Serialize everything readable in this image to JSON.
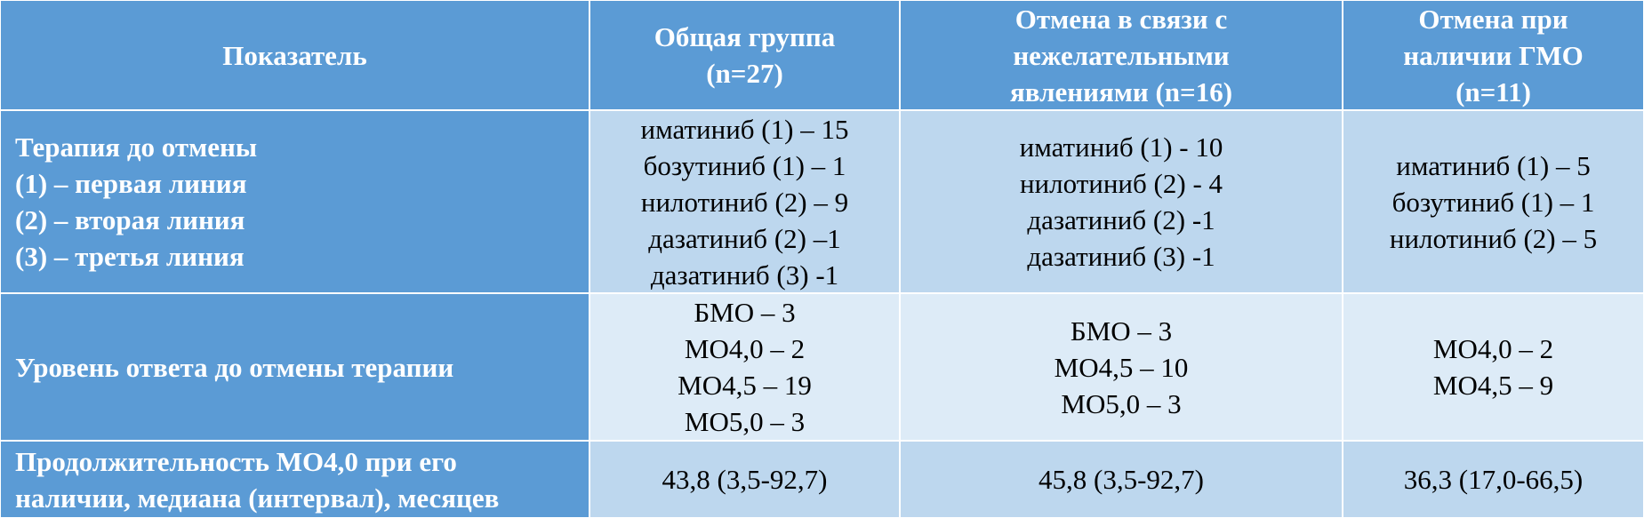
{
  "table": {
    "header": [
      [
        "Показатель"
      ],
      [
        "Общая группа",
        "(n=27)"
      ],
      [
        "Отмена в связи с",
        "нежелательными",
        "явлениями (n=16)"
      ],
      [
        "Отмена при",
        "наличии ГМО",
        "(n=11)"
      ]
    ],
    "rows": [
      [
        [
          "Терапия до отмены",
          "(1) – первая линия",
          "(2) – вторая линия",
          "(3) – третья линия"
        ],
        [
          "иматиниб (1) – 15",
          "бозутиниб (1) – 1",
          "нилотиниб (2) – 9",
          "дазатиниб (2) –1",
          "дазатиниб (3) -1"
        ],
        [
          "иматиниб (1) - 10",
          "нилотиниб (2) - 4",
          "дазатиниб (2) -1",
          "дазатиниб (3) -1"
        ],
        [
          "иматиниб (1) – 5",
          "бозутиниб (1) – 1",
          "нилотиниб (2) – 5"
        ]
      ],
      [
        [
          "Уровень ответа до отмены терапии"
        ],
        [
          "БМО – 3",
          "МО4,0 – 2",
          "МО4,5 – 19",
          "МО5,0 – 3"
        ],
        [
          "БМО – 3",
          "МО4,5 – 10",
          "МО5,0 – 3"
        ],
        [
          "МО4,0 – 2",
          "МО4,5 – 9"
        ]
      ],
      [
        [
          "Продолжительность МО4,0 при его",
          "наличии, медиана (интервал), месяцев"
        ],
        [
          "43,8 (3,5-92,7)"
        ],
        [
          "45,8 (3,5-92,7)"
        ],
        [
          "36,3 (17,0-66,5)"
        ]
      ]
    ]
  }
}
